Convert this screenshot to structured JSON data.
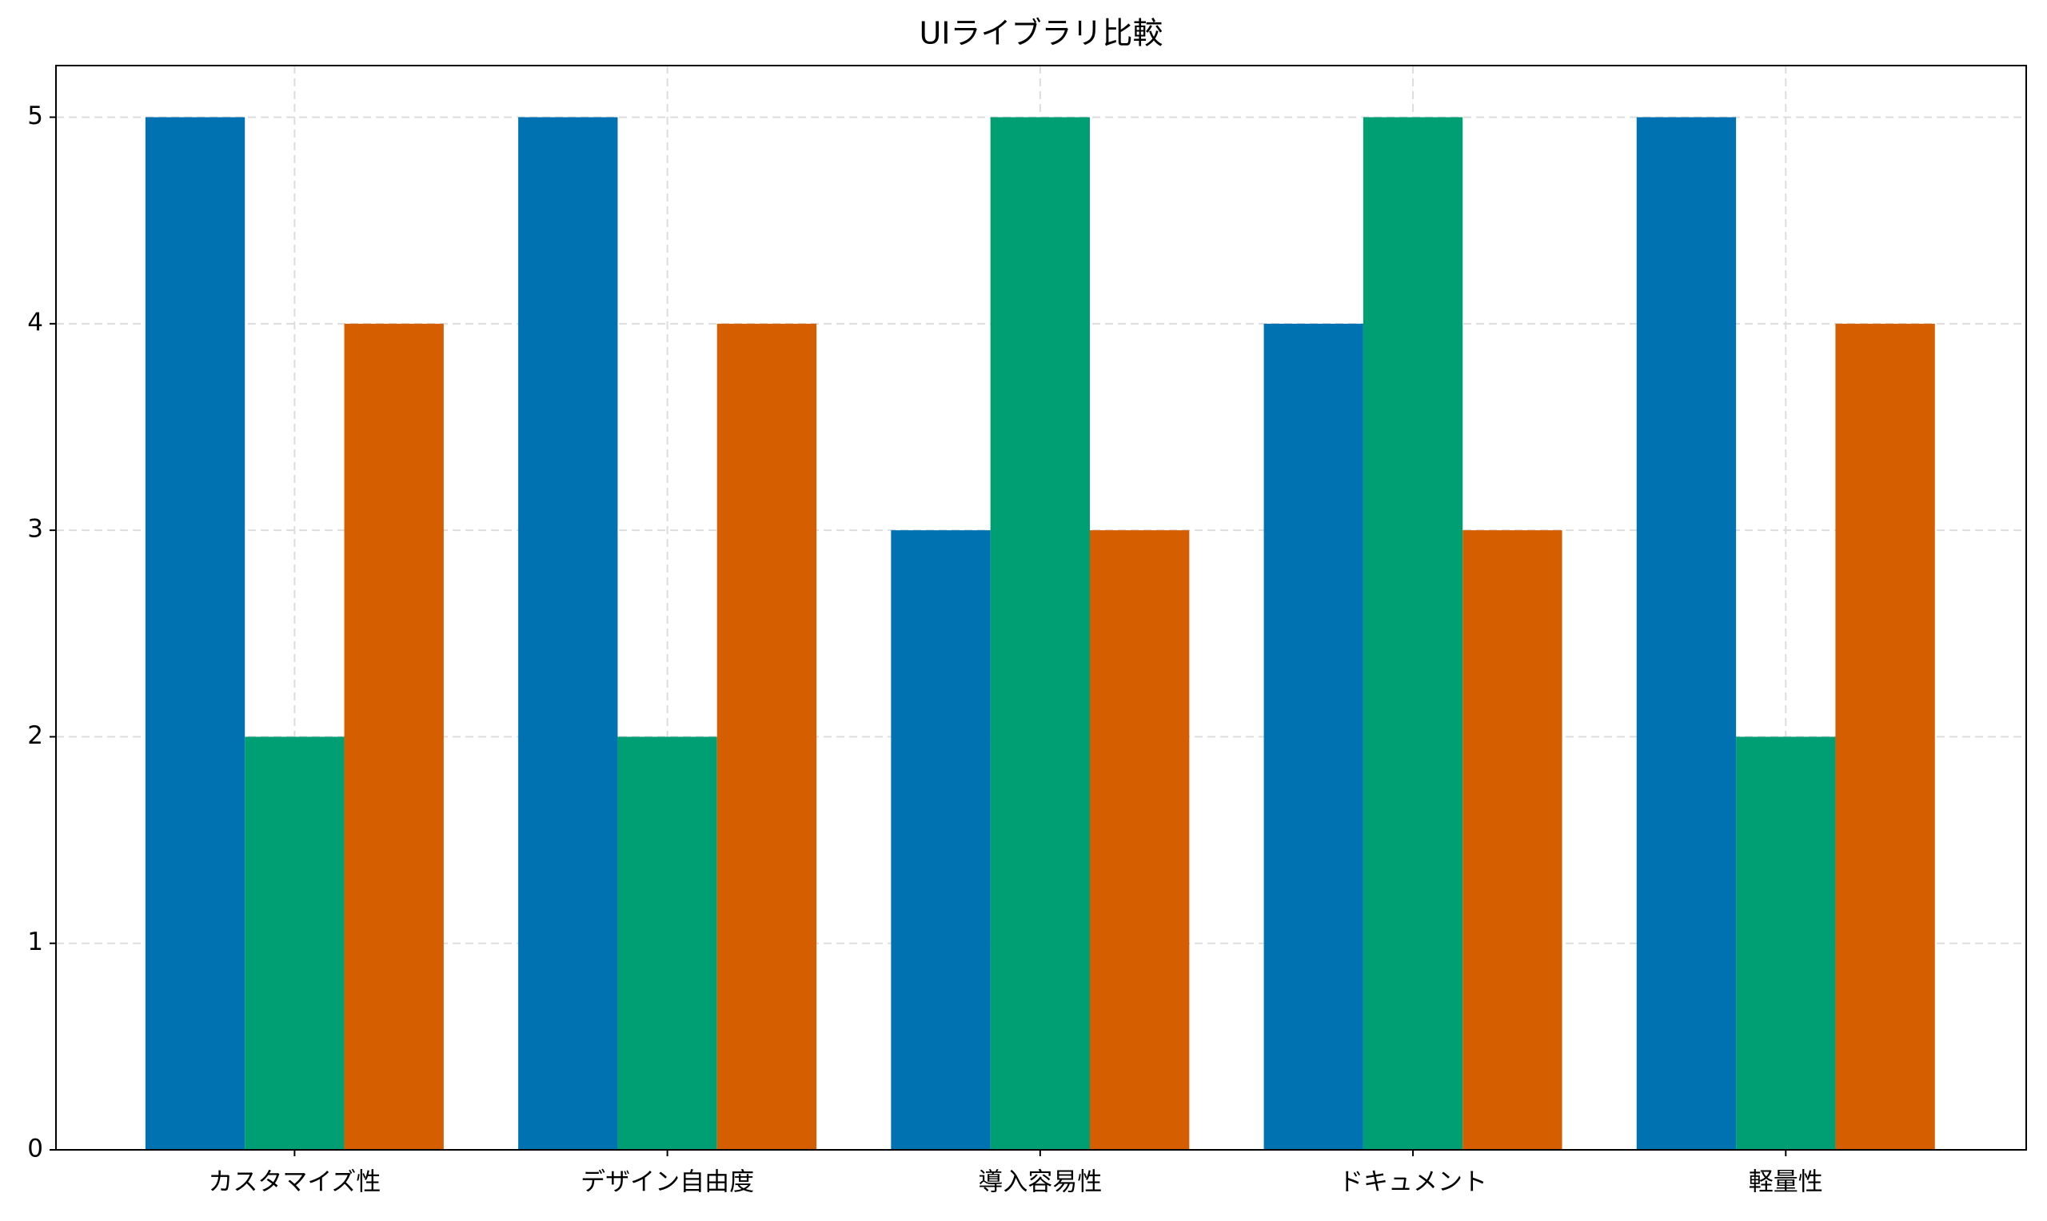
{
  "chart_data": {
    "type": "bar",
    "title": "UIライブラリ比較",
    "categories": [
      "カスタマイズ性",
      "デザイン自由度",
      "導入容易性",
      "ドキュメント",
      "軽量性"
    ],
    "series": [
      {
        "color": "#0072b2",
        "values": [
          5,
          5,
          3,
          4,
          5
        ]
      },
      {
        "color": "#009e73",
        "values": [
          2,
          2,
          5,
          5,
          2
        ]
      },
      {
        "color": "#d55e00",
        "values": [
          4,
          4,
          3,
          3,
          4
        ]
      }
    ],
    "ylim": [
      0,
      5.25
    ],
    "yticks": [
      0,
      1,
      2,
      3,
      4,
      5
    ],
    "grid": true
  }
}
